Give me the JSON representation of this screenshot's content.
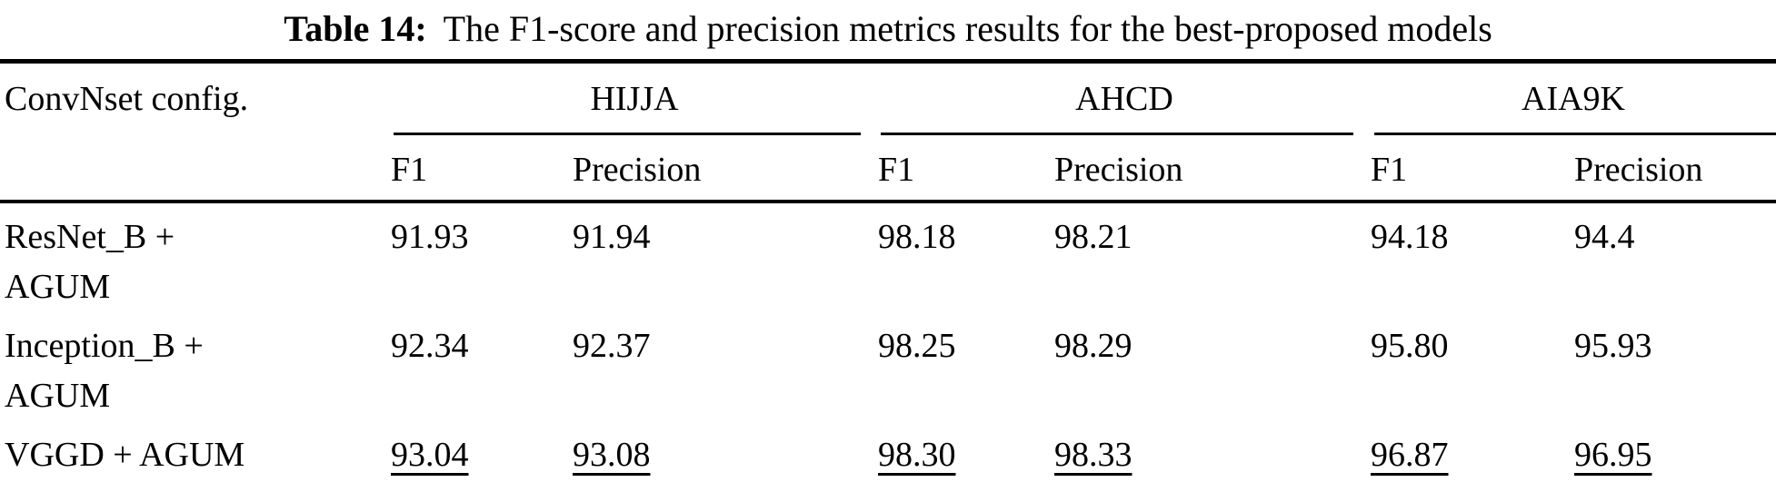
{
  "caption": {
    "label": "Table 14:",
    "text": "The F1-score and precision metrics results for the best-proposed models"
  },
  "table": {
    "config_header": "ConvNset config.",
    "groups": [
      {
        "label": "HIJJA",
        "sub": [
          "F1",
          "Precision"
        ]
      },
      {
        "label": "AHCD",
        "sub": [
          "F1",
          "Precision"
        ]
      },
      {
        "label": "AIA9K",
        "sub": [
          "F1",
          "Precision"
        ]
      }
    ],
    "rows": [
      {
        "config": [
          "ResNet_B +",
          "AGUM"
        ],
        "values": [
          "91.93",
          "91.94",
          "98.18",
          "98.21",
          "94.18",
          "94.4"
        ],
        "underlined": false
      },
      {
        "config": [
          "Inception_B +",
          "AGUM"
        ],
        "values": [
          "92.34",
          "92.37",
          "98.25",
          "98.29",
          "95.80",
          "95.93"
        ],
        "underlined": false
      },
      {
        "config": [
          "VGGD + AGUM"
        ],
        "values": [
          "93.04",
          "93.08",
          "98.30",
          "98.33",
          "96.87",
          "96.95"
        ],
        "underlined": true
      }
    ]
  },
  "colors": {
    "text": "#000000",
    "background": "#ffffff",
    "rule": "#000000"
  }
}
